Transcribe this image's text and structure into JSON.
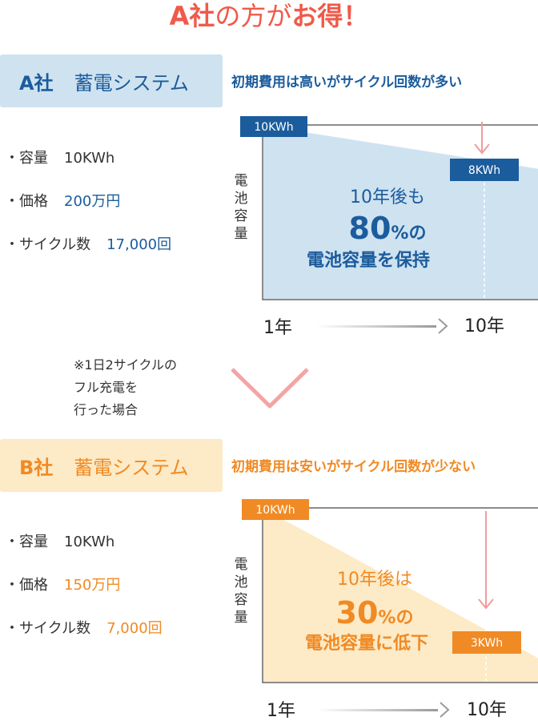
{
  "headline": {
    "part1": "A社",
    "part2": "の方が",
    "part3": "お得！"
  },
  "company_a": {
    "name": "A社",
    "product": "蓄電システム",
    "subtitle": "初期費用は高いがサイクル回数が多い",
    "specs": [
      {
        "label": "・容量",
        "value": "10KWh"
      },
      {
        "label": "・価格",
        "value": "200万円"
      },
      {
        "label": "・サイクル数",
        "value": "17,000回"
      }
    ],
    "chart": {
      "y_axis_label": [
        "電",
        "池",
        "容",
        "量"
      ],
      "start_label": "10KWh",
      "end_label": "8KWh",
      "headline_line1": "10年後も",
      "percent_value": "80",
      "percent_suffix": "%の",
      "headline_line3": "電池容量を保持",
      "x_start": "1年",
      "x_end": "10年",
      "retention_fraction": 0.8
    }
  },
  "note": {
    "lines": [
      "※1日2サイクルの",
      "フル充電を",
      "行った場合"
    ]
  },
  "company_b": {
    "name": "B社",
    "product": "蓄電システム",
    "subtitle": "初期費用は安いがサイクル回数が少ない",
    "specs": [
      {
        "label": "・容量",
        "value": "10KWh"
      },
      {
        "label": "・価格",
        "value": "150万円"
      },
      {
        "label": "・サイクル数",
        "value": "7,000回"
      }
    ],
    "chart": {
      "y_axis_label": [
        "電",
        "池",
        "容",
        "量"
      ],
      "start_label": "10KWh",
      "end_label": "3KWh",
      "headline_line1": "10年後は",
      "percent_value": "30",
      "percent_suffix": "%の",
      "headline_line3": "電池容量に低下",
      "x_start": "1年",
      "x_end": "10年",
      "retention_fraction": 0.3
    }
  },
  "colors": {
    "accent_red": "#f05a4a",
    "a_dark": "#1b5c9c",
    "a_fill": "#cfe2f0",
    "b_orange": "#f08a24",
    "b_fill": "#fdeac6",
    "arrow_pink": "#f19c9c"
  }
}
